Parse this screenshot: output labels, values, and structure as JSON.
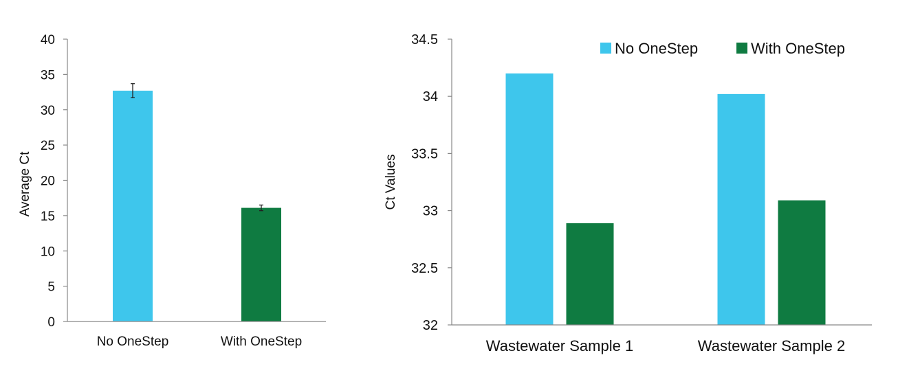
{
  "colors": {
    "no_onestep": "#3EC6EC",
    "with_onestep": "#0F7B41",
    "axis": "#888888"
  },
  "chart_data": [
    {
      "type": "bar",
      "title": "",
      "xlabel": "",
      "ylabel": "Average Ct",
      "ylim": [
        0,
        40
      ],
      "yticks": [
        "0",
        "5",
        "10",
        "15",
        "20",
        "25",
        "30",
        "35",
        "40"
      ],
      "categories": [
        "No OneStep",
        "With OneStep"
      ],
      "values": [
        32.7,
        16.1
      ],
      "error": [
        1.0,
        0.4
      ],
      "grid": false,
      "legend": "none"
    },
    {
      "type": "bar",
      "title": "",
      "xlabel": "",
      "ylabel": "Ct Values",
      "ylim": [
        32,
        34.5
      ],
      "yticks": [
        "32",
        "32.5",
        "33",
        "33.5",
        "34",
        "34.5"
      ],
      "categories": [
        "Wastewater Sample 1",
        "Wastewater Sample 2"
      ],
      "series": [
        {
          "name": "No OneStep",
          "values": [
            34.2,
            34.02
          ]
        },
        {
          "name": "With OneStep",
          "values": [
            32.89,
            33.09
          ]
        }
      ],
      "grid": false,
      "legend": "top-right"
    }
  ]
}
